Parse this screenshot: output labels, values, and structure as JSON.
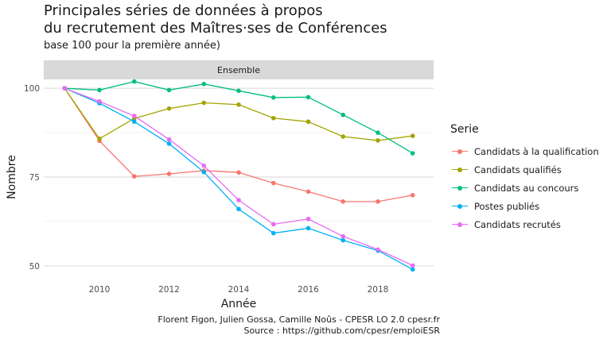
{
  "chart_data": {
    "type": "line",
    "title": "Principales séries de données à propos\ndu recrutement des Maîtres·ses de Conférences",
    "subtitle": "base 100 pour la première année)",
    "facet_label": "Ensemble",
    "xlabel": "Année",
    "ylabel": "Nombre",
    "x": [
      2009,
      2010,
      2011,
      2012,
      2013,
      2014,
      2015,
      2016,
      2017,
      2018,
      2019
    ],
    "xlim": [
      2008.4,
      2019.6
    ],
    "ylim": [
      47.5,
      102.5
    ],
    "x_ticks": [
      2010,
      2012,
      2014,
      2016,
      2018
    ],
    "y_ticks": [
      50,
      75,
      100
    ],
    "grid": true,
    "legend_title": "Serie",
    "legend_position": "right",
    "series": [
      {
        "name": "Candidats à la qualification",
        "color": "#F8766D",
        "values": [
          100,
          85.2,
          75.2,
          75.9,
          76.8,
          76.3,
          73.3,
          70.9,
          68.1,
          68.1,
          69.9
        ]
      },
      {
        "name": "Candidats qualifiés",
        "color": "#A3A500",
        "values": [
          100,
          85.8,
          91.5,
          94.3,
          95.9,
          95.4,
          91.6,
          90.6,
          86.4,
          85.3,
          86.6
        ]
      },
      {
        "name": "Candidats au concours",
        "color": "#00BF7D",
        "values": [
          100,
          99.5,
          101.9,
          99.5,
          101.2,
          99.3,
          97.4,
          97.5,
          92.5,
          87.5,
          81.7
        ]
      },
      {
        "name": "Postes publiés",
        "color": "#00B0F6",
        "values": [
          100,
          95.8,
          90.6,
          84.4,
          76.4,
          66.0,
          59.2,
          60.6,
          57.2,
          54.3,
          49.0
        ]
      },
      {
        "name": "Candidats recrutés",
        "color": "#E76BF3",
        "values": [
          100,
          96.3,
          92.2,
          85.6,
          78.2,
          68.5,
          61.7,
          63.2,
          58.3,
          54.6,
          50.1
        ]
      }
    ]
  },
  "caption": "Florent Figon, Julien Gossa, Camille Noûs - CPESR LO 2.0 cpesr.fr\nSource : https://github.com/cpesr/emploiESR"
}
